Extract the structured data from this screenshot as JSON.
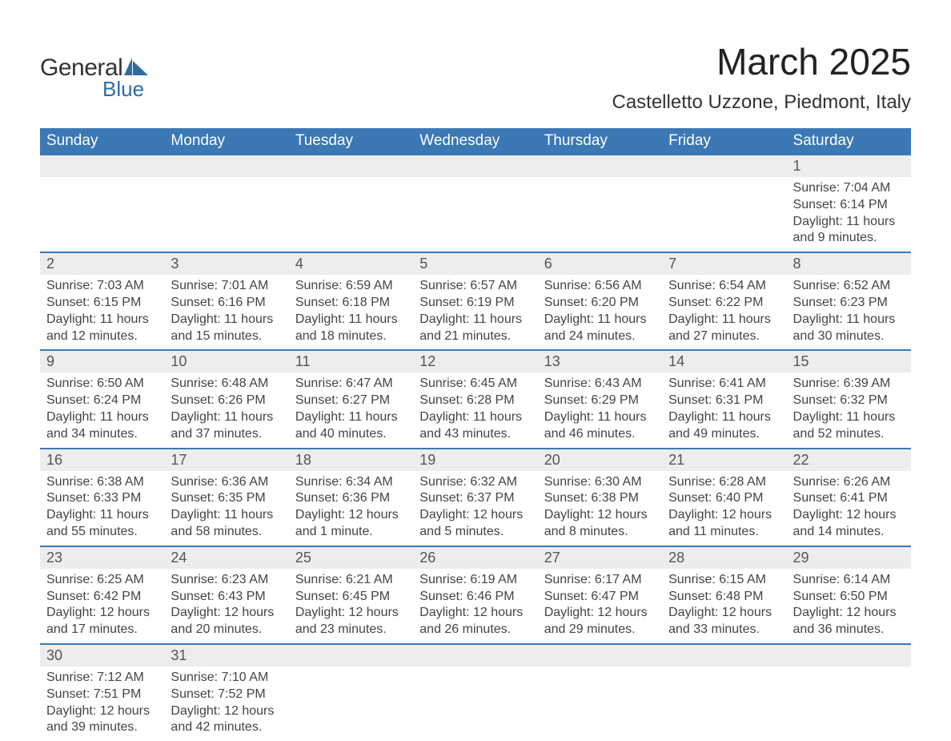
{
  "logo": {
    "text1": "General",
    "text2": "Blue",
    "mark_color": "#2d6ca2"
  },
  "header": {
    "month_title": "March 2025",
    "location": "Castelletto Uzzone, Piedmont, Italy"
  },
  "colors": {
    "header_bg": "#3b78b5",
    "header_text": "#ffffff",
    "daynum_bg": "#ededed",
    "row_border": "#3b78b5",
    "body_text": "#444444"
  },
  "day_headers": [
    "Sunday",
    "Monday",
    "Tuesday",
    "Wednesday",
    "Thursday",
    "Friday",
    "Saturday"
  ],
  "weeks": [
    [
      null,
      null,
      null,
      null,
      null,
      null,
      {
        "n": "1",
        "sr": "Sunrise: 7:04 AM",
        "ss": "Sunset: 6:14 PM",
        "d1": "Daylight: 11 hours",
        "d2": "and 9 minutes."
      }
    ],
    [
      {
        "n": "2",
        "sr": "Sunrise: 7:03 AM",
        "ss": "Sunset: 6:15 PM",
        "d1": "Daylight: 11 hours",
        "d2": "and 12 minutes."
      },
      {
        "n": "3",
        "sr": "Sunrise: 7:01 AM",
        "ss": "Sunset: 6:16 PM",
        "d1": "Daylight: 11 hours",
        "d2": "and 15 minutes."
      },
      {
        "n": "4",
        "sr": "Sunrise: 6:59 AM",
        "ss": "Sunset: 6:18 PM",
        "d1": "Daylight: 11 hours",
        "d2": "and 18 minutes."
      },
      {
        "n": "5",
        "sr": "Sunrise: 6:57 AM",
        "ss": "Sunset: 6:19 PM",
        "d1": "Daylight: 11 hours",
        "d2": "and 21 minutes."
      },
      {
        "n": "6",
        "sr": "Sunrise: 6:56 AM",
        "ss": "Sunset: 6:20 PM",
        "d1": "Daylight: 11 hours",
        "d2": "and 24 minutes."
      },
      {
        "n": "7",
        "sr": "Sunrise: 6:54 AM",
        "ss": "Sunset: 6:22 PM",
        "d1": "Daylight: 11 hours",
        "d2": "and 27 minutes."
      },
      {
        "n": "8",
        "sr": "Sunrise: 6:52 AM",
        "ss": "Sunset: 6:23 PM",
        "d1": "Daylight: 11 hours",
        "d2": "and 30 minutes."
      }
    ],
    [
      {
        "n": "9",
        "sr": "Sunrise: 6:50 AM",
        "ss": "Sunset: 6:24 PM",
        "d1": "Daylight: 11 hours",
        "d2": "and 34 minutes."
      },
      {
        "n": "10",
        "sr": "Sunrise: 6:48 AM",
        "ss": "Sunset: 6:26 PM",
        "d1": "Daylight: 11 hours",
        "d2": "and 37 minutes."
      },
      {
        "n": "11",
        "sr": "Sunrise: 6:47 AM",
        "ss": "Sunset: 6:27 PM",
        "d1": "Daylight: 11 hours",
        "d2": "and 40 minutes."
      },
      {
        "n": "12",
        "sr": "Sunrise: 6:45 AM",
        "ss": "Sunset: 6:28 PM",
        "d1": "Daylight: 11 hours",
        "d2": "and 43 minutes."
      },
      {
        "n": "13",
        "sr": "Sunrise: 6:43 AM",
        "ss": "Sunset: 6:29 PM",
        "d1": "Daylight: 11 hours",
        "d2": "and 46 minutes."
      },
      {
        "n": "14",
        "sr": "Sunrise: 6:41 AM",
        "ss": "Sunset: 6:31 PM",
        "d1": "Daylight: 11 hours",
        "d2": "and 49 minutes."
      },
      {
        "n": "15",
        "sr": "Sunrise: 6:39 AM",
        "ss": "Sunset: 6:32 PM",
        "d1": "Daylight: 11 hours",
        "d2": "and 52 minutes."
      }
    ],
    [
      {
        "n": "16",
        "sr": "Sunrise: 6:38 AM",
        "ss": "Sunset: 6:33 PM",
        "d1": "Daylight: 11 hours",
        "d2": "and 55 minutes."
      },
      {
        "n": "17",
        "sr": "Sunrise: 6:36 AM",
        "ss": "Sunset: 6:35 PM",
        "d1": "Daylight: 11 hours",
        "d2": "and 58 minutes."
      },
      {
        "n": "18",
        "sr": "Sunrise: 6:34 AM",
        "ss": "Sunset: 6:36 PM",
        "d1": "Daylight: 12 hours",
        "d2": "and 1 minute."
      },
      {
        "n": "19",
        "sr": "Sunrise: 6:32 AM",
        "ss": "Sunset: 6:37 PM",
        "d1": "Daylight: 12 hours",
        "d2": "and 5 minutes."
      },
      {
        "n": "20",
        "sr": "Sunrise: 6:30 AM",
        "ss": "Sunset: 6:38 PM",
        "d1": "Daylight: 12 hours",
        "d2": "and 8 minutes."
      },
      {
        "n": "21",
        "sr": "Sunrise: 6:28 AM",
        "ss": "Sunset: 6:40 PM",
        "d1": "Daylight: 12 hours",
        "d2": "and 11 minutes."
      },
      {
        "n": "22",
        "sr": "Sunrise: 6:26 AM",
        "ss": "Sunset: 6:41 PM",
        "d1": "Daylight: 12 hours",
        "d2": "and 14 minutes."
      }
    ],
    [
      {
        "n": "23",
        "sr": "Sunrise: 6:25 AM",
        "ss": "Sunset: 6:42 PM",
        "d1": "Daylight: 12 hours",
        "d2": "and 17 minutes."
      },
      {
        "n": "24",
        "sr": "Sunrise: 6:23 AM",
        "ss": "Sunset: 6:43 PM",
        "d1": "Daylight: 12 hours",
        "d2": "and 20 minutes."
      },
      {
        "n": "25",
        "sr": "Sunrise: 6:21 AM",
        "ss": "Sunset: 6:45 PM",
        "d1": "Daylight: 12 hours",
        "d2": "and 23 minutes."
      },
      {
        "n": "26",
        "sr": "Sunrise: 6:19 AM",
        "ss": "Sunset: 6:46 PM",
        "d1": "Daylight: 12 hours",
        "d2": "and 26 minutes."
      },
      {
        "n": "27",
        "sr": "Sunrise: 6:17 AM",
        "ss": "Sunset: 6:47 PM",
        "d1": "Daylight: 12 hours",
        "d2": "and 29 minutes."
      },
      {
        "n": "28",
        "sr": "Sunrise: 6:15 AM",
        "ss": "Sunset: 6:48 PM",
        "d1": "Daylight: 12 hours",
        "d2": "and 33 minutes."
      },
      {
        "n": "29",
        "sr": "Sunrise: 6:14 AM",
        "ss": "Sunset: 6:50 PM",
        "d1": "Daylight: 12 hours",
        "d2": "and 36 minutes."
      }
    ],
    [
      {
        "n": "30",
        "sr": "Sunrise: 7:12 AM",
        "ss": "Sunset: 7:51 PM",
        "d1": "Daylight: 12 hours",
        "d2": "and 39 minutes."
      },
      {
        "n": "31",
        "sr": "Sunrise: 7:10 AM",
        "ss": "Sunset: 7:52 PM",
        "d1": "Daylight: 12 hours",
        "d2": "and 42 minutes."
      },
      null,
      null,
      null,
      null,
      null
    ]
  ]
}
